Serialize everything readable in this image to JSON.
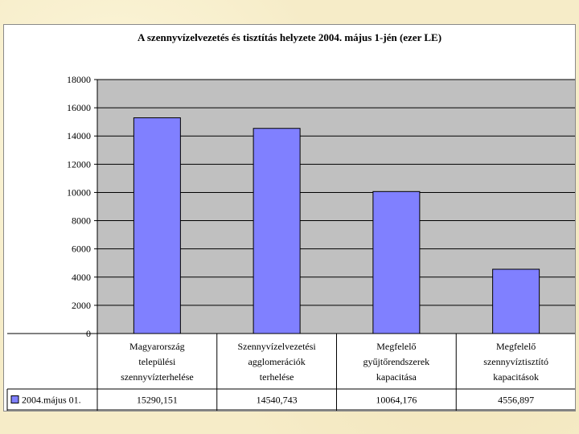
{
  "chart_data": {
    "type": "bar",
    "title": "A szennyvízelvezetés és tisztítás helyzete 2004. május 1-jén (ezer LE)",
    "categories": [
      [
        "Magyarország",
        "települési",
        "szennyvízterhelése"
      ],
      [
        "Szennyvízelvezetési",
        "agglomerációk",
        "terhelése"
      ],
      [
        "Megfelelő",
        "gyűjtőrendszerek",
        "kapacitása"
      ],
      [
        "Megfelelő",
        "szennyvíztisztító",
        "kapacitások"
      ]
    ],
    "series": [
      {
        "name": "2004.május 01.",
        "values": [
          15290.151,
          14540.743,
          10064.176,
          4556.897
        ],
        "labels": [
          "15290,151",
          "14540,743",
          "10064,176",
          "4556,897"
        ],
        "color": "#8080ff"
      }
    ],
    "ylim": [
      0,
      18000
    ],
    "yticks": [
      "0",
      "2000",
      "4000",
      "6000",
      "8000",
      "10000",
      "12000",
      "14000",
      "16000",
      "18000"
    ],
    "grid": true,
    "plot_background": "#c0c0c0",
    "legend": "data-table"
  }
}
